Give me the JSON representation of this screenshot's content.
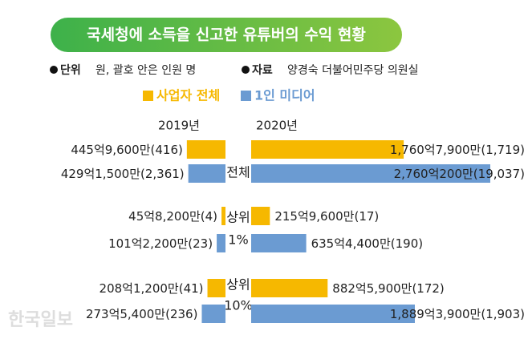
{
  "chart_data": {
    "type": "butterfly",
    "title": "국세청에 소득을 신고한 유튜버의 수익 현황",
    "notes": [
      {
        "label": "단위",
        "text": "원, 괄호 안은 인원 명"
      },
      {
        "label": "자료",
        "text": "양경숙 더불어민주당 의원실"
      }
    ],
    "years": [
      "2019년",
      "2020년"
    ],
    "categories": [
      [
        "전체"
      ],
      [
        "상위",
        "1%"
      ],
      [
        "상위",
        "10%"
      ]
    ],
    "series": [
      {
        "name": "사업자 전체",
        "color": "#f6b800",
        "left": {
          "values": [
            445.96,
            45.82,
            208.12
          ],
          "value_labels": [
            "445억9,600만(416)",
            "45억8,200만(4)",
            "208억1,200만(41)"
          ]
        },
        "right": {
          "values": [
            1760.79,
            215.96,
            882.59
          ],
          "value_labels": [
            "1,760억7,900만(1,719)",
            "215억9,600만(17)",
            "882억5,900만(172)"
          ]
        }
      },
      {
        "name": "1인 미디어",
        "color": "#6b9bd2",
        "left": {
          "values": [
            429.15,
            101.22,
            273.54
          ],
          "value_labels": [
            "429억1,500만(2,361)",
            "101억2,200만(23)",
            "273억5,400만(236)"
          ]
        },
        "right": {
          "values": [
            2760.02,
            635.44,
            1889.39
          ],
          "value_labels": [
            "2,760억200만(19,037)",
            "635억4,400만(190)",
            "1,889억3,900만(1,903)"
          ]
        }
      }
    ],
    "watermark": "한국일보"
  }
}
